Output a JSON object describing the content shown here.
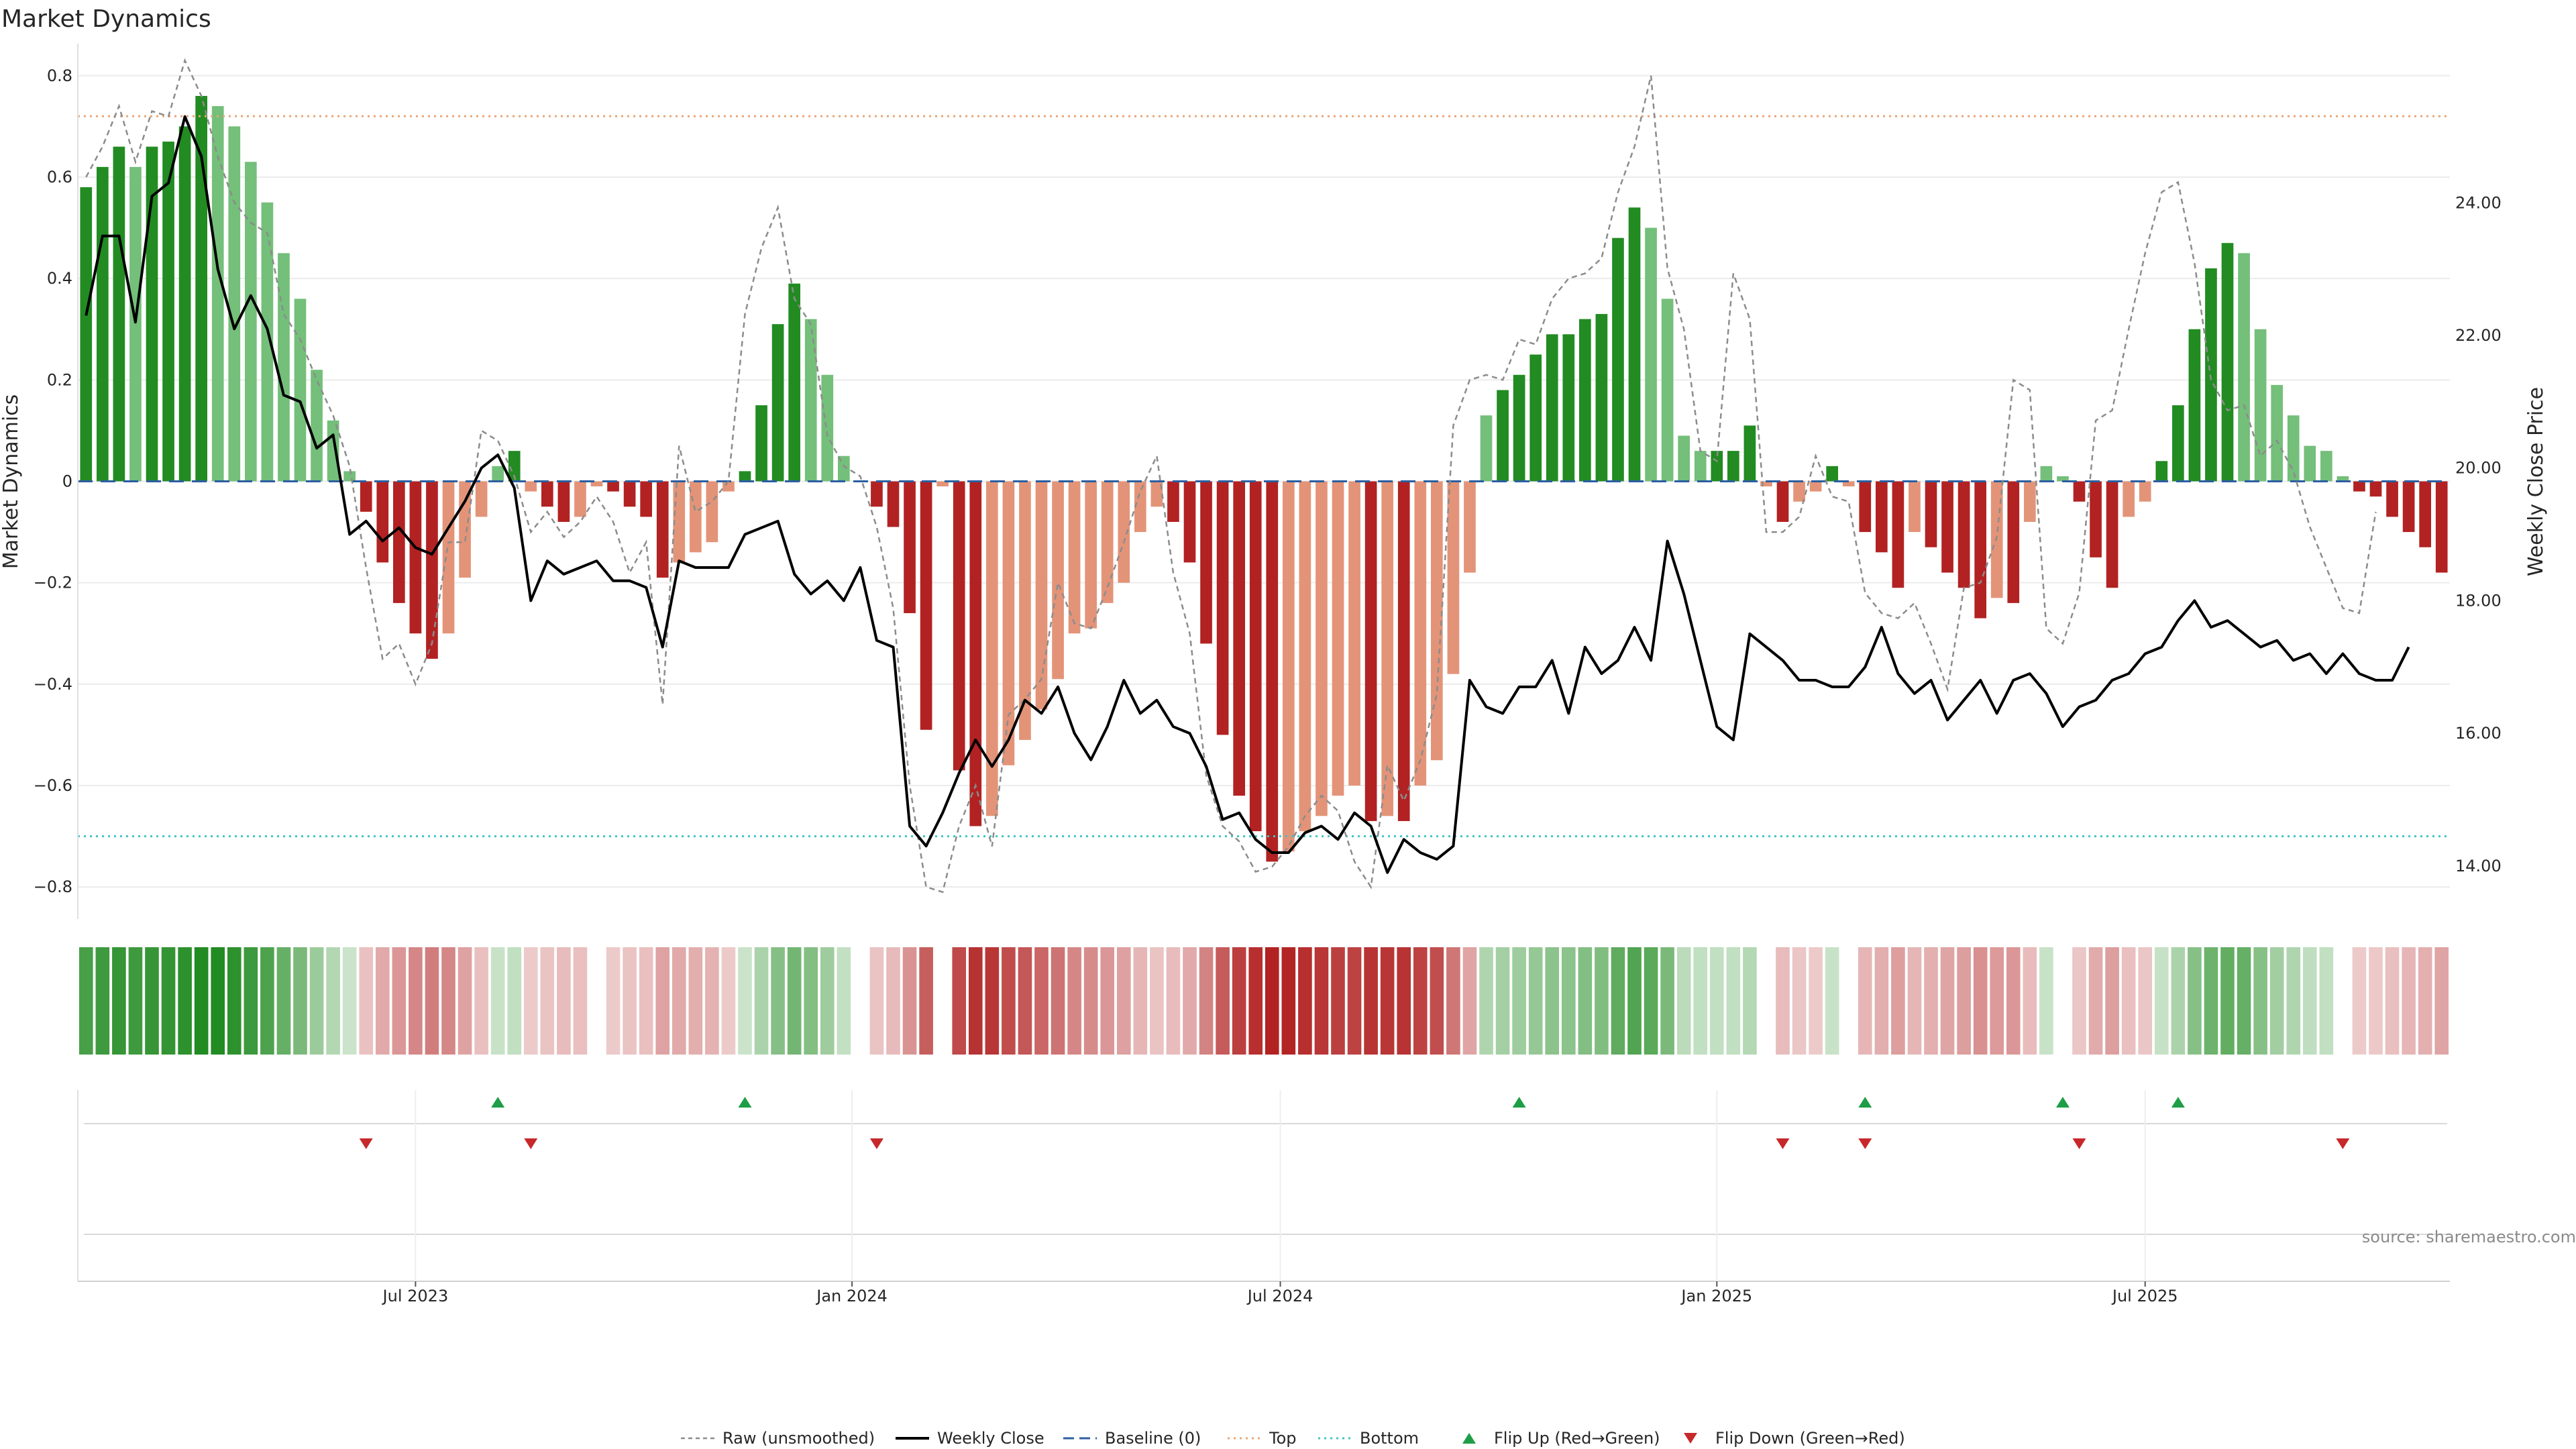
{
  "chart_data": {
    "type": "bar",
    "title": "Market Dynamics",
    "ylabel_left": "Market Dynamics",
    "ylabel_right": "Weekly Close Price",
    "source_label": "source: sharemaestro.com",
    "ylim_left": [
      -0.85,
      0.85
    ],
    "ylim_right": [
      13.3,
      26.3
    ],
    "yticks_left": [
      {
        "v": 0.8,
        "label": "0.8"
      },
      {
        "v": 0.6,
        "label": "0.6"
      },
      {
        "v": 0.4,
        "label": "0.4"
      },
      {
        "v": 0.2,
        "label": "0.2"
      },
      {
        "v": 0,
        "label": "0"
      },
      {
        "v": -0.2,
        "label": "−0.2"
      },
      {
        "v": -0.4,
        "label": "−0.4"
      },
      {
        "v": -0.6,
        "label": "−0.6"
      },
      {
        "v": -0.8,
        "label": "−0.8"
      }
    ],
    "yticks_right": [
      {
        "v": 24,
        "label": "24.00"
      },
      {
        "v": 22,
        "label": "22.00"
      },
      {
        "v": 20,
        "label": "20.00"
      },
      {
        "v": 18,
        "label": "18.00"
      },
      {
        "v": 16,
        "label": "16.00"
      },
      {
        "v": 14,
        "label": "14.00"
      }
    ],
    "x_ticks": [
      {
        "week": 20,
        "label": "Jul 2023"
      },
      {
        "week": 46.5,
        "label": "Jan 2024"
      },
      {
        "week": 72.5,
        "label": "Jul 2024"
      },
      {
        "week": 99,
        "label": "Jan 2025"
      },
      {
        "week": 125,
        "label": "Jul 2025"
      }
    ],
    "week_range": [
      0,
      143
    ],
    "reference_lines": {
      "baseline": 0,
      "top": 0.72,
      "bottom": -0.7
    },
    "dynamics": [
      0.58,
      0.62,
      0.66,
      0.62,
      0.66,
      0.67,
      0.7,
      0.76,
      0.74,
      0.7,
      0.63,
      0.55,
      0.45,
      0.36,
      0.22,
      0.12,
      0.02,
      -0.06,
      -0.16,
      -0.24,
      -0.3,
      -0.35,
      -0.3,
      -0.19,
      -0.07,
      0.03,
      0.06,
      -0.02,
      -0.05,
      -0.08,
      -0.07,
      -0.01,
      -0.02,
      -0.05,
      -0.07,
      -0.19,
      -0.16,
      -0.14,
      -0.12,
      -0.02,
      0.02,
      0.15,
      0.31,
      0.39,
      0.32,
      0.21,
      0.05,
      0,
      -0.05,
      -0.09,
      -0.26,
      -0.49,
      -0.01,
      -0.57,
      -0.68,
      -0.66,
      -0.56,
      -0.51,
      -0.45,
      -0.39,
      -0.3,
      -0.29,
      -0.24,
      -0.2,
      -0.1,
      -0.05,
      -0.08,
      -0.16,
      -0.32,
      -0.5,
      -0.62,
      -0.69,
      -0.75,
      -0.73,
      -0.69,
      -0.66,
      -0.62,
      -0.6,
      -0.67,
      -0.66,
      -0.67,
      -0.6,
      -0.55,
      -0.38,
      -0.18,
      0.13,
      0.18,
      0.21,
      0.25,
      0.29,
      0.29,
      0.32,
      0.33,
      0.48,
      0.54,
      0.5,
      0.36,
      0.09,
      0.06,
      0.06,
      0.06,
      0.11,
      -0.01,
      -0.08,
      -0.04,
      -0.02,
      0.03,
      -0.01,
      -0.1,
      -0.14,
      -0.21,
      -0.1,
      -0.13,
      -0.18,
      -0.21,
      -0.27,
      -0.23,
      -0.24,
      -0.08,
      0.03,
      0.01,
      -0.04,
      -0.15,
      -0.21,
      -0.07,
      -0.04,
      0.04,
      0.15,
      0.3,
      0.42,
      0.47,
      0.45,
      0.3,
      0.19,
      0.13,
      0.07,
      0.06,
      0.01,
      -0.02,
      -0.03,
      -0.07,
      -0.1,
      -0.13,
      -0.18
    ],
    "raw": [
      0.6,
      0.66,
      0.74,
      0.63,
      0.73,
      0.72,
      0.83,
      0.76,
      0.64,
      0.55,
      0.51,
      0.49,
      0.33,
      0.28,
      0.2,
      0.13,
      0.03,
      -0.17,
      -0.35,
      -0.32,
      -0.4,
      -0.32,
      -0.12,
      -0.12,
      0.1,
      0.08,
      0.01,
      -0.1,
      -0.06,
      -0.11,
      -0.08,
      -0.03,
      -0.08,
      -0.18,
      -0.12,
      -0.44,
      0.07,
      -0.06,
      -0.04,
      0.0,
      0.33,
      0.46,
      0.54,
      0.36,
      0.31,
      0.09,
      0.03,
      0.01,
      -0.09,
      -0.25,
      -0.6,
      -0.8,
      -0.81,
      -0.68,
      -0.6,
      -0.72,
      -0.46,
      -0.43,
      -0.39,
      -0.2,
      -0.28,
      -0.29,
      -0.21,
      -0.12,
      -0.02,
      0.05,
      -0.18,
      -0.3,
      -0.58,
      -0.68,
      -0.71,
      -0.77,
      -0.76,
      -0.72,
      -0.66,
      -0.62,
      -0.65,
      -0.75,
      -0.8,
      -0.56,
      -0.63,
      -0.55,
      -0.42,
      0.11,
      0.2,
      0.21,
      0.2,
      0.28,
      0.27,
      0.36,
      0.4,
      0.41,
      0.44,
      0.57,
      0.66,
      0.8,
      0.42,
      0.3,
      0.06,
      0.04,
      0.41,
      0.32,
      -0.1,
      -0.1,
      -0.07,
      0.05,
      -0.03,
      -0.04,
      -0.22,
      -0.26,
      -0.27,
      -0.24,
      -0.32,
      -0.41,
      -0.21,
      -0.2,
      -0.11,
      0.2,
      0.18,
      -0.29,
      -0.32,
      -0.22,
      0.12,
      0.14,
      0.3,
      0.45,
      0.57,
      0.59,
      0.43,
      0.2,
      0.14,
      0.15,
      0.05,
      0.08,
      0.02,
      -0.09,
      -0.17,
      -0.25,
      -0.26,
      -0.06
    ],
    "weekly_close": [
      22.3,
      23.5,
      23.5,
      22.2,
      24.1,
      24.3,
      25.3,
      24.7,
      23.0,
      22.1,
      22.6,
      22.1,
      21.1,
      21.0,
      20.3,
      20.5,
      19.0,
      19.2,
      18.9,
      19.1,
      18.8,
      18.7,
      19.1,
      19.5,
      20.0,
      20.2,
      19.7,
      18.0,
      18.6,
      18.4,
      18.5,
      18.6,
      18.3,
      18.3,
      18.2,
      17.3,
      18.6,
      18.5,
      18.5,
      18.5,
      19.0,
      19.1,
      19.2,
      18.4,
      18.1,
      18.3,
      18.0,
      18.5,
      17.4,
      17.3,
      14.6,
      14.3,
      14.8,
      15.4,
      15.9,
      15.5,
      15.9,
      16.5,
      16.3,
      16.7,
      16.0,
      15.6,
      16.1,
      16.8,
      16.3,
      16.5,
      16.1,
      16.0,
      15.5,
      14.7,
      14.8,
      14.4,
      14.2,
      14.2,
      14.5,
      14.6,
      14.4,
      14.8,
      14.6,
      13.9,
      14.4,
      14.2,
      14.1,
      14.3,
      16.8,
      16.4,
      16.3,
      16.7,
      16.7,
      17.1,
      16.3,
      17.3,
      16.9,
      17.1,
      17.6,
      17.1,
      18.9,
      18.1,
      17.1,
      16.1,
      15.9,
      17.5,
      17.3,
      17.1,
      16.8,
      16.8,
      16.7,
      16.7,
      17.0,
      17.6,
      16.9,
      16.6,
      16.8,
      16.2,
      16.5,
      16.8,
      16.3,
      16.8,
      16.9,
      16.6,
      16.1,
      16.4,
      16.5,
      16.8,
      16.9,
      17.2,
      17.3,
      17.7,
      18.0,
      17.6,
      17.7,
      17.5,
      17.3,
      17.4,
      17.1,
      17.2,
      16.9,
      17.2,
      16.9,
      16.8,
      16.8,
      17.3
    ],
    "flip_up_weeks": [
      25,
      40,
      87,
      108,
      120,
      127
    ],
    "flip_down_weeks": [
      17,
      27,
      48,
      103,
      108,
      121,
      137
    ],
    "legend": [
      {
        "label": "Raw (unsmoothed)",
        "kind": "raw"
      },
      {
        "label": "Weekly Close",
        "kind": "close"
      },
      {
        "label": "Baseline (0)",
        "kind": "baseline"
      },
      {
        "label": "Top",
        "kind": "top"
      },
      {
        "label": "Bottom",
        "kind": "bottom"
      },
      {
        "label": "Flip Up (Red→Green)",
        "kind": "flip-up"
      },
      {
        "label": "Flip Down (Green→Red)",
        "kind": "flip-down"
      }
    ],
    "legend_placement": "bottom-center",
    "grid": true,
    "colors": {
      "strong_green": "#228b22",
      "light_green": "#74bf7a",
      "strong_red": "#b22222",
      "light_red": "#e39478",
      "raw": "#8c8c8c",
      "close": "#000000",
      "baseline": "#2b5fa1",
      "top": "#e8a677",
      "bottom": "#3ec5c5",
      "flip_up": "#1e9e46",
      "flip_down": "#c7282b"
    }
  }
}
